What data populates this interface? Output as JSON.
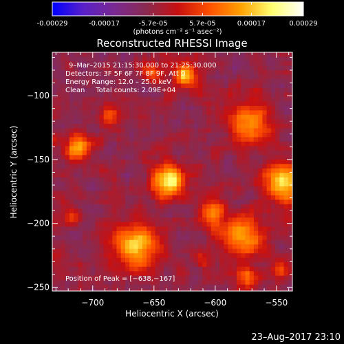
{
  "colorbar": {
    "tick_labels": [
      "-0.00029",
      "-0.00017",
      "-5.7e-05",
      "5.7e-05",
      "0.00017",
      "0.00029"
    ],
    "tick_values": [
      -0.00029,
      -0.00017,
      -5.7e-05,
      5.7e-05,
      0.00017,
      0.00029
    ],
    "range": [
      -0.00029,
      0.00029
    ],
    "unit_label": "(photons cm⁻² s⁻¹ asec⁻²)",
    "colors": [
      "#0000ff",
      "#5a20c8",
      "#7a2a90",
      "#8a2a50",
      "#c81010",
      "#ff5000",
      "#ffa000",
      "#ffff70",
      "#ffffff"
    ]
  },
  "chart_data": {
    "type": "heatmap",
    "title": "Reconstructed RHESSI Image",
    "xlabel": "Heliocentric X (arcsec)",
    "ylabel": "Heliocentric Y (arcsec)",
    "xlim": [
      -733,
      -537
    ],
    "ylim": [
      -253,
      -66
    ],
    "xticks": [
      -700,
      -650,
      -600,
      -550
    ],
    "yticks": [
      -100,
      -150,
      -200,
      -250
    ],
    "xtick_labels": [
      "−700",
      "−650",
      "−600",
      "−550"
    ],
    "ytick_labels": [
      "−100",
      "−150",
      "−200",
      "−250"
    ],
    "background_value": -6e-05,
    "sources": [
      {
        "x": -638,
        "y": -167,
        "peak": 0.00029,
        "r": 9
      },
      {
        "x": -665,
        "y": -218,
        "peak": 0.00025,
        "r": 12
      },
      {
        "x": -545,
        "y": -168,
        "peak": 0.00026,
        "r": 10
      },
      {
        "x": -572,
        "y": -120,
        "peak": 0.0002,
        "r": 11
      },
      {
        "x": -577,
        "y": -210,
        "peak": 0.00022,
        "r": 11
      },
      {
        "x": -625,
        "y": -84,
        "peak": 0.00022,
        "r": 6
      },
      {
        "x": -712,
        "y": -141,
        "peak": 0.0002,
        "r": 7
      },
      {
        "x": -602,
        "y": -193,
        "peak": 0.00018,
        "r": 7
      },
      {
        "x": -686,
        "y": -115,
        "peak": 0.00014,
        "r": 5
      },
      {
        "x": -574,
        "y": -243,
        "peak": 0.00014,
        "r": 6
      },
      {
        "x": -653,
        "y": -82,
        "peak": 0.00017,
        "r": 5
      },
      {
        "x": -718,
        "y": -196,
        "peak": 0.00012,
        "r": 5
      },
      {
        "x": -610,
        "y": -230,
        "peak": 0.0001,
        "r": 5
      },
      {
        "x": -548,
        "y": -236,
        "peak": 0.00012,
        "r": 5
      }
    ],
    "annotations": {
      "time_range": "9–Mar–2015 21:15:30.000 to 21:25:30.000",
      "detectors": "Detectors: 3F 5F 6F 7F 8F 9F, Att 0",
      "energy_range": "Energy Range: 12.0 – 25.0 keV",
      "algorithm_counts": "Clean     Total counts: 2.09E+04",
      "peak_position": "Position of Peak = [−638,−167]"
    }
  },
  "footer": {
    "timestamp": "23–Aug–2017 23:10"
  }
}
